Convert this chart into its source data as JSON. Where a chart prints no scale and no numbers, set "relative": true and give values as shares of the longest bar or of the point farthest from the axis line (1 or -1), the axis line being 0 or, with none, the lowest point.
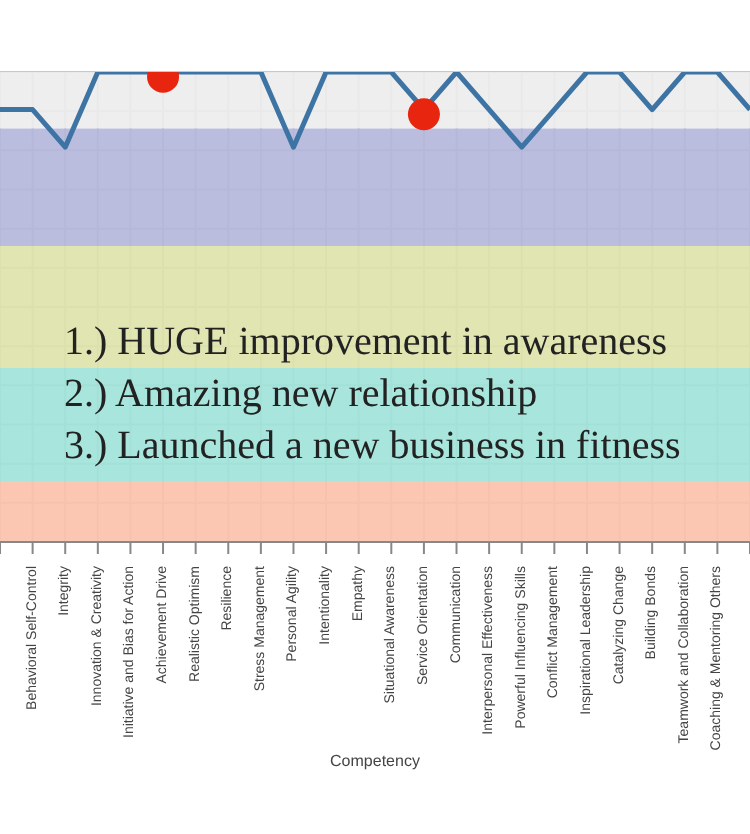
{
  "chart_data": {
    "type": "line",
    "relative": true,
    "xlabel": "Competency",
    "grid": true,
    "categories": [
      null,
      "Behavioral Self-Control",
      "Integrity",
      "Innovation & Creativity",
      "Initiative and Bias for Action",
      "Achievement Drive",
      "Realistic Optimism",
      "Resilience",
      "Stress Management",
      "Personal Agility",
      "Intentionality",
      "Empathy",
      "Situational Awareness",
      "Service Orientation",
      "Communication",
      "Interpersonal Effectiveness",
      "Powerful Influencing Skills",
      "Conflict Management",
      "Inspirational Leadership",
      "Catalyzing Change",
      "Building Bonds",
      "Teamwork and Collaboration",
      "Coaching & Mentoring Others",
      null
    ],
    "series": [
      {
        "color": "#3d74a4",
        "values": [
          0.92,
          0.92,
          0.84,
          1,
          1,
          1,
          1,
          1,
          1,
          0.84,
          1,
          1,
          1,
          0.92,
          1,
          0.92,
          0.84,
          0.92,
          1,
          1,
          0.92,
          1,
          1,
          0.92
        ]
      },
      {
        "type": "scatter",
        "color": "#e8250f",
        "x": [
          "Achievement Drive",
          "Service Orientation"
        ],
        "values": [
          0.99,
          0.91
        ]
      }
    ],
    "bands": [
      {
        "axis": "y",
        "from": 0.88,
        "to": 1,
        "color": "#ececec"
      },
      {
        "axis": "y",
        "from": 0.63,
        "to": 0.88,
        "color": "#b3b6da"
      },
      {
        "axis": "y",
        "from": 0.37,
        "to": 0.63,
        "color": "#dde2a8"
      },
      {
        "axis": "y",
        "from": 0.13,
        "to": 0.37,
        "color": "#9fe2d8"
      },
      {
        "axis": "y",
        "from": 0,
        "to": 0.13,
        "color": "#fbc1aa"
      }
    ],
    "annotations": [
      "1.) HUGE improvement in awareness",
      "2.) Amazing new relationship",
      "3.) Launched a new business in fitness"
    ]
  }
}
